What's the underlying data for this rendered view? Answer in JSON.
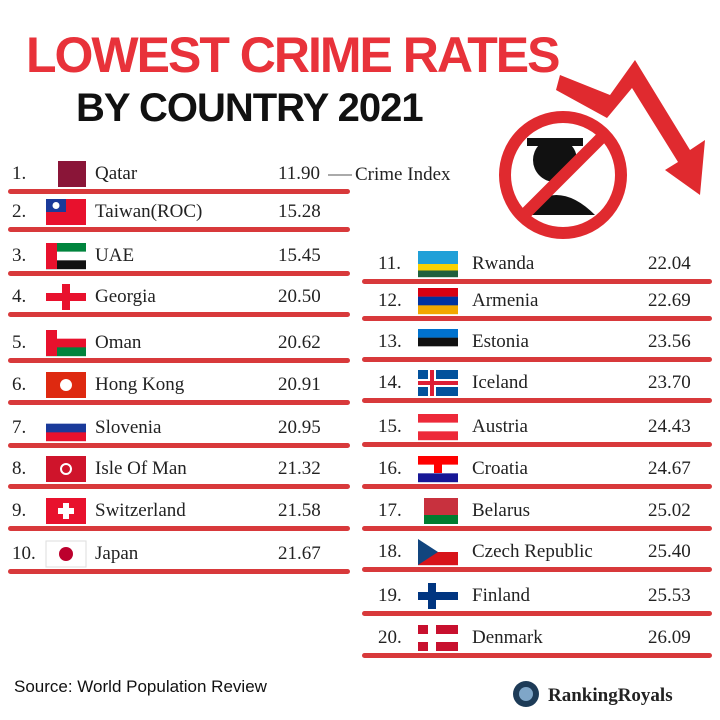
{
  "title": "LOWEST CRIME RATES",
  "subtitle": "BY COUNTRY 2021",
  "annotation": "Crime Index",
  "rows": [
    {
      "rank": "1.",
      "country": "Qatar",
      "index": "11.90"
    },
    {
      "rank": "2.",
      "country": "Taiwan(ROC)",
      "index": "15.28"
    },
    {
      "rank": "3.",
      "country": "UAE",
      "index": "15.45"
    },
    {
      "rank": "4.",
      "country": "Georgia",
      "index": "20.50"
    },
    {
      "rank": "5.",
      "country": "Oman",
      "index": "20.62"
    },
    {
      "rank": "6.",
      "country": "Hong Kong",
      "index": "20.91"
    },
    {
      "rank": "7.",
      "country": "Slovenia",
      "index": "20.95"
    },
    {
      "rank": "8.",
      "country": "Isle Of Man",
      "index": "21.32"
    },
    {
      "rank": "9.",
      "country": "Switzerland",
      "index": "21.58"
    },
    {
      "rank": "10.",
      "country": "Japan",
      "index": "21.67"
    },
    {
      "rank": "11.",
      "country": "Rwanda",
      "index": "22.04"
    },
    {
      "rank": "12.",
      "country": "Armenia",
      "index": "22.69"
    },
    {
      "rank": "13.",
      "country": "Estonia",
      "index": "23.56"
    },
    {
      "rank": "14.",
      "country": "Iceland",
      "index": "23.70"
    },
    {
      "rank": "15.",
      "country": "Austria",
      "index": "24.43"
    },
    {
      "rank": "16.",
      "country": "Croatia",
      "index": "24.67"
    },
    {
      "rank": "17.",
      "country": "Belarus",
      "index": "25.02"
    },
    {
      "rank": "18.",
      "country": "Czech Republic",
      "index": "25.40"
    },
    {
      "rank": "19.",
      "country": "Finland",
      "index": "25.53"
    },
    {
      "rank": "20.",
      "country": "Denmark",
      "index": "26.09"
    }
  ],
  "source": "Source: World Population Review",
  "brand": "RankingRoyals"
}
